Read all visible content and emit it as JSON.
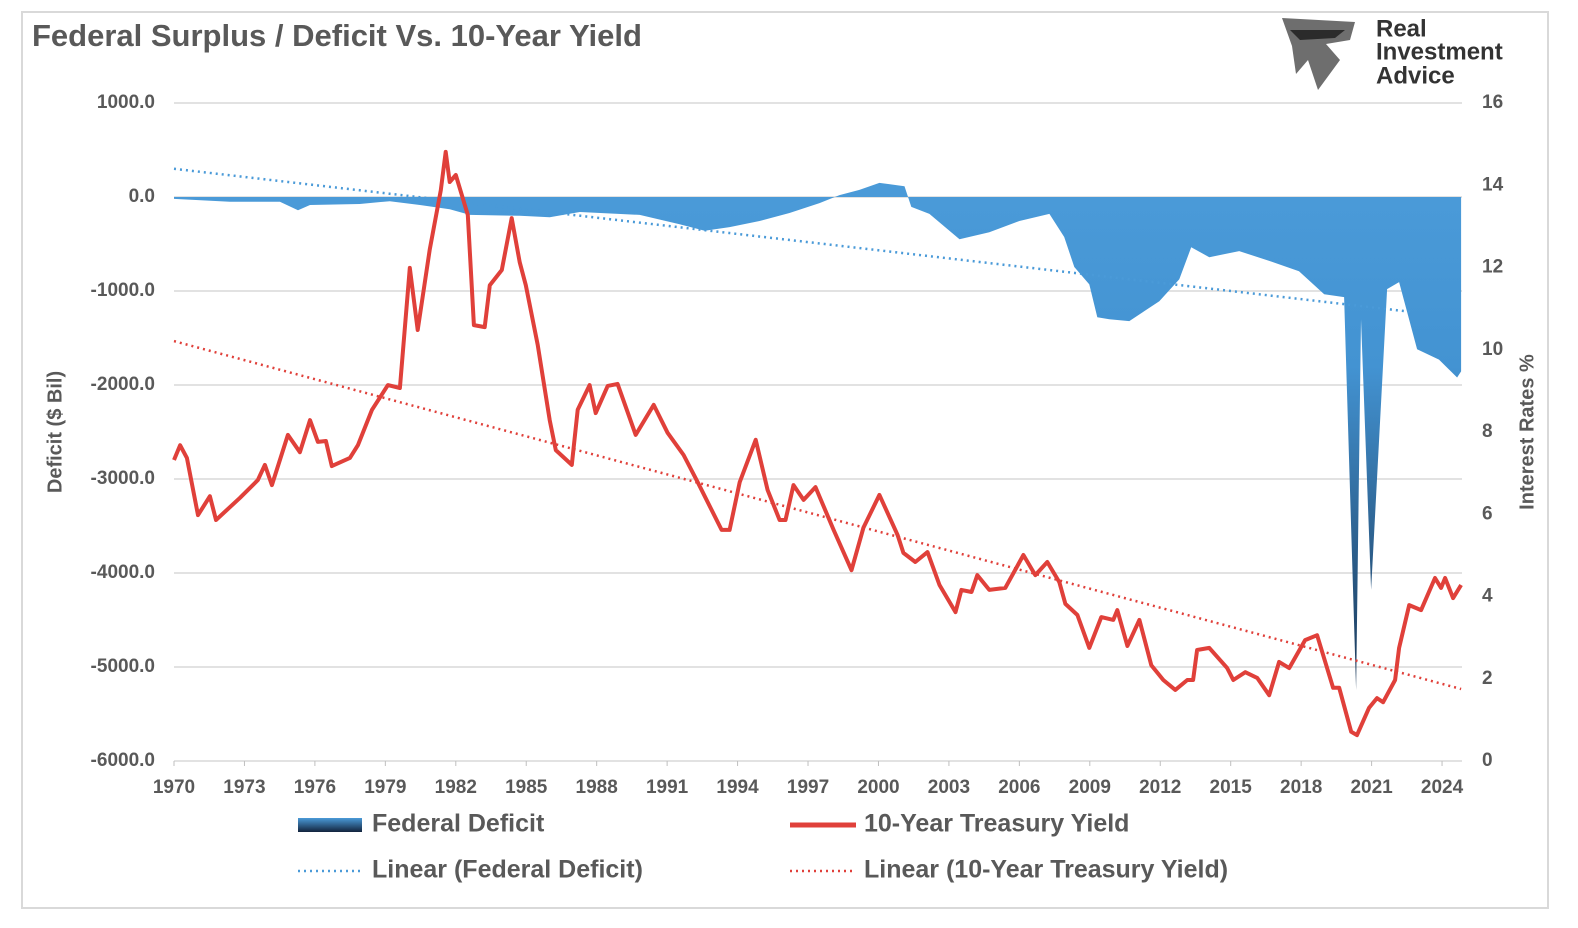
{
  "chart_data": {
    "type": "combo",
    "title": "Federal Surplus / Deficit Vs. 10-Year Yield",
    "annotations": [
      "Real",
      "Investment",
      "Advice"
    ],
    "ylabel": "Deficit ($ Bil)",
    "y2label": "Interest Rates %",
    "xlim": [
      1970,
      2024.85
    ],
    "xticks": [
      1970,
      1973,
      1976,
      1979,
      1982,
      1985,
      1988,
      1991,
      1994,
      1997,
      2000,
      2003,
      2006,
      2009,
      2012,
      2015,
      2018,
      2021,
      2024
    ],
    "ylim": [
      -6000,
      1000
    ],
    "yticks": [
      {
        "value": -6000,
        "label": "-6000.0"
      },
      {
        "value": -5000,
        "label": "-5000.0"
      },
      {
        "value": -4000,
        "label": "-4000.0"
      },
      {
        "value": -3000,
        "label": "-3000.0"
      },
      {
        "value": -2000,
        "label": "-2000.0"
      },
      {
        "value": -1000,
        "label": "-1000.0"
      },
      {
        "value": 0,
        "label": "0.0"
      },
      {
        "value": 1000,
        "label": "1000.0"
      }
    ],
    "y2lim": [
      0,
      16
    ],
    "y2ticks": [
      0,
      2,
      4,
      6,
      8,
      10,
      12,
      14,
      16
    ],
    "grid": true,
    "legend": "bottom",
    "series": [
      {
        "name": "Federal Deficit",
        "type": "area",
        "color": "#4a9ad8",
        "x": [
          1970.0,
          1972.38,
          1974.51,
          1975.28,
          1975.79,
          1977.91,
          1979.19,
          1980.47,
          1981.74,
          1982.6,
          1984.72,
          1986.0,
          1987.28,
          1989.83,
          1991.53,
          1992.6,
          1993.66,
          1994.94,
          1996.21,
          1997.49,
          1998.34,
          1999.19,
          2000.04,
          2001.11,
          2001.4,
          2002.17,
          2003.45,
          2004.72,
          2006.0,
          2007.28,
          2007.91,
          2008.34,
          2008.98,
          2009.32,
          2009.83,
          2010.68,
          2011.96,
          2012.81,
          2013.32,
          2014.09,
          2015.36,
          2016.64,
          2017.91,
          2018.98,
          2019.83,
          2020.34,
          2020.55,
          2020.98,
          2021.66,
          2022.17,
          2022.94,
          2023.87,
          2024.64,
          2024.81
        ],
        "values": [
          -20,
          -50,
          -50,
          -140,
          -85,
          -75,
          -45,
          -85,
          -130,
          -190,
          -200,
          -215,
          -160,
          -190,
          -290,
          -360,
          -320,
          -255,
          -170,
          -65,
          20,
          75,
          150,
          115,
          -105,
          -180,
          -450,
          -375,
          -255,
          -180,
          -425,
          -745,
          -930,
          -1280,
          -1300,
          -1320,
          -1110,
          -875,
          -535,
          -640,
          -575,
          -680,
          -790,
          -1035,
          -1065,
          -5245,
          -1300,
          -4180,
          -980,
          -905,
          -1620,
          -1730,
          -1920,
          -1855
        ]
      },
      {
        "name": "10-Year Treasury Yield",
        "type": "line",
        "axis": "y2",
        "color": "#e0403a",
        "x": [
          1970.0,
          1970.26,
          1970.55,
          1971.02,
          1971.53,
          1971.79,
          1972.81,
          1973.57,
          1973.87,
          1974.17,
          1974.85,
          1975.36,
          1975.79,
          1976.13,
          1976.47,
          1976.72,
          1977.49,
          1977.83,
          1978.43,
          1979.11,
          1979.62,
          1980.04,
          1980.38,
          1980.89,
          1981.36,
          1981.57,
          1981.74,
          1982.0,
          1982.51,
          1982.77,
          1983.23,
          1983.45,
          1983.96,
          1984.38,
          1984.72,
          1984.98,
          1985.49,
          1986.0,
          1986.26,
          1986.94,
          1987.19,
          1987.7,
          1987.96,
          1988.47,
          1988.89,
          1989.66,
          1990.43,
          1991.02,
          1991.7,
          1992.3,
          1993.32,
          1993.66,
          1994.09,
          1994.77,
          1995.28,
          1995.79,
          1996.04,
          1996.38,
          1996.81,
          1997.32,
          1998.09,
          1998.85,
          1999.36,
          2000.04,
          2000.81,
          2001.06,
          2001.57,
          2002.09,
          2002.6,
          2003.28,
          2003.53,
          2003.96,
          2004.21,
          2004.72,
          2005.4,
          2006.17,
          2006.68,
          2007.19,
          2007.7,
          2007.96,
          2008.47,
          2008.98,
          2009.49,
          2010.0,
          2010.17,
          2010.6,
          2011.11,
          2011.62,
          2012.13,
          2012.64,
          2013.15,
          2013.4,
          2013.57,
          2014.09,
          2014.85,
          2015.11,
          2015.62,
          2016.13,
          2016.64,
          2017.06,
          2017.49,
          2018.17,
          2018.68,
          2019.36,
          2019.62,
          2020.13,
          2020.38,
          2020.89,
          2021.23,
          2021.49,
          2022.0,
          2022.17,
          2022.6,
          2023.11,
          2023.7,
          2023.96,
          2024.13,
          2024.47,
          2024.81
        ],
        "values": [
          7.32,
          7.68,
          7.37,
          5.98,
          6.44,
          5.86,
          6.4,
          6.83,
          7.2,
          6.71,
          7.93,
          7.51,
          8.29,
          7.76,
          7.78,
          7.17,
          7.37,
          7.68,
          8.54,
          9.14,
          9.07,
          11.99,
          10.48,
          12.43,
          13.88,
          14.81,
          14.08,
          14.25,
          13.28,
          10.6,
          10.55,
          11.57,
          11.94,
          13.2,
          12.13,
          11.57,
          10.12,
          8.29,
          7.56,
          7.2,
          8.54,
          9.14,
          8.46,
          9.12,
          9.17,
          7.93,
          8.66,
          7.98,
          7.44,
          6.78,
          5.62,
          5.62,
          6.78,
          7.81,
          6.59,
          5.86,
          5.86,
          6.71,
          6.35,
          6.66,
          5.62,
          4.64,
          5.67,
          6.47,
          5.5,
          5.06,
          4.84,
          5.08,
          4.28,
          3.62,
          4.16,
          4.11,
          4.52,
          4.16,
          4.21,
          5.01,
          4.52,
          4.84,
          4.35,
          3.82,
          3.55,
          2.75,
          3.5,
          3.43,
          3.67,
          2.8,
          3.43,
          2.33,
          1.97,
          1.73,
          1.97,
          1.97,
          2.7,
          2.75,
          2.26,
          1.97,
          2.16,
          2.02,
          1.6,
          2.41,
          2.26,
          2.94,
          3.06,
          1.78,
          1.78,
          0.71,
          0.63,
          1.29,
          1.53,
          1.43,
          1.97,
          2.75,
          3.79,
          3.67,
          4.45,
          4.21,
          4.45,
          3.96,
          4.28
        ]
      },
      {
        "name": "Linear (Federal Deficit)",
        "type": "trend",
        "color": "#4a9ad8",
        "x": [
          1970.0,
          2022.77
        ],
        "values": [
          300,
          -1225
        ]
      },
      {
        "name": "Linear (10-Year Treasury Yield)",
        "type": "trend",
        "axis": "y2",
        "color": "#e0403a",
        "x": [
          1970.0,
          2024.81
        ],
        "values": [
          10.21,
          1.75
        ]
      }
    ]
  }
}
